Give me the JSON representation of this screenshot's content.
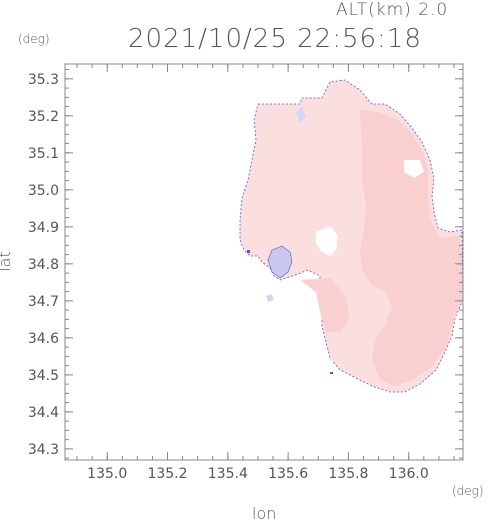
{
  "header": {
    "alt_label": "ALT(km) 2.0",
    "datetime": "2021/10/25 22:56:18"
  },
  "axes": {
    "x_label": "lon",
    "y_label": "lat",
    "x_unit": "(deg)",
    "y_unit": "(deg)"
  },
  "map_data": {
    "type": "map",
    "lon_range": [
      134.86,
      136.18
    ],
    "lat_range": [
      34.27,
      35.34
    ],
    "x_ticks": [
      135.0,
      135.2,
      135.4,
      135.6,
      135.8,
      136.0
    ],
    "y_ticks": [
      34.3,
      34.4,
      34.5,
      34.6,
      34.7,
      34.8,
      34.9,
      35.0,
      35.1,
      35.2,
      35.3
    ],
    "colors": {
      "field_light": "#fbdede",
      "field_mid": "#f9d0d0",
      "low_value": "#c8c8ee",
      "edge": "#4444cc",
      "axes": "#888888"
    }
  }
}
